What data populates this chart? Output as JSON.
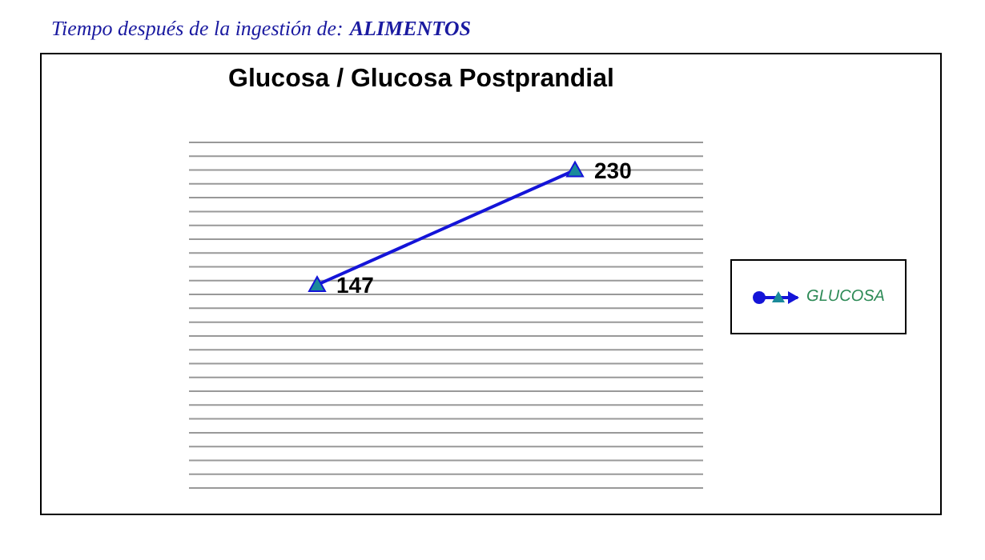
{
  "chart_data": {
    "type": "line",
    "title": "Glucosa / Glucosa Postprandial",
    "annotations": [
      "Tiempo después de la ingestión de:",
      "ALIMENTOS"
    ],
    "categories": [
      null,
      null
    ],
    "series": [
      {
        "name": "GLUCOSA",
        "color": "#1414d8",
        "values": [
          147,
          230
        ]
      }
    ],
    "ylim": [
      0,
      250
    ],
    "yticks": [
      {
        "value": 0,
        "label": null
      },
      {
        "value": 10,
        "label": null
      },
      {
        "value": 20,
        "label": null
      },
      {
        "value": 30,
        "label": null
      },
      {
        "value": 40,
        "label": null
      },
      {
        "value": 50,
        "label": null
      },
      {
        "value": 60,
        "label": null
      },
      {
        "value": 70,
        "label": null
      },
      {
        "value": 80,
        "label": null
      },
      {
        "value": 90,
        "label": null
      },
      {
        "value": 100,
        "label": null
      },
      {
        "value": 110,
        "label": null
      },
      {
        "value": 120,
        "label": null
      },
      {
        "value": 130,
        "label": null
      },
      {
        "value": 140,
        "label": null
      },
      {
        "value": 150,
        "label": null
      },
      {
        "value": 160,
        "label": null
      },
      {
        "value": 170,
        "label": null
      },
      {
        "value": 180,
        "label": null
      },
      {
        "value": 190,
        "label": null
      },
      {
        "value": 200,
        "label": null
      },
      {
        "value": 210,
        "label": null
      },
      {
        "value": 220,
        "label": null
      },
      {
        "value": 230,
        "label": null
      },
      {
        "value": 240,
        "label": null
      },
      {
        "value": 250,
        "label": null
      }
    ],
    "grid": "y",
    "legend": "right",
    "marker": "triangle",
    "line_style": "solid",
    "data_labels": true
  }
}
